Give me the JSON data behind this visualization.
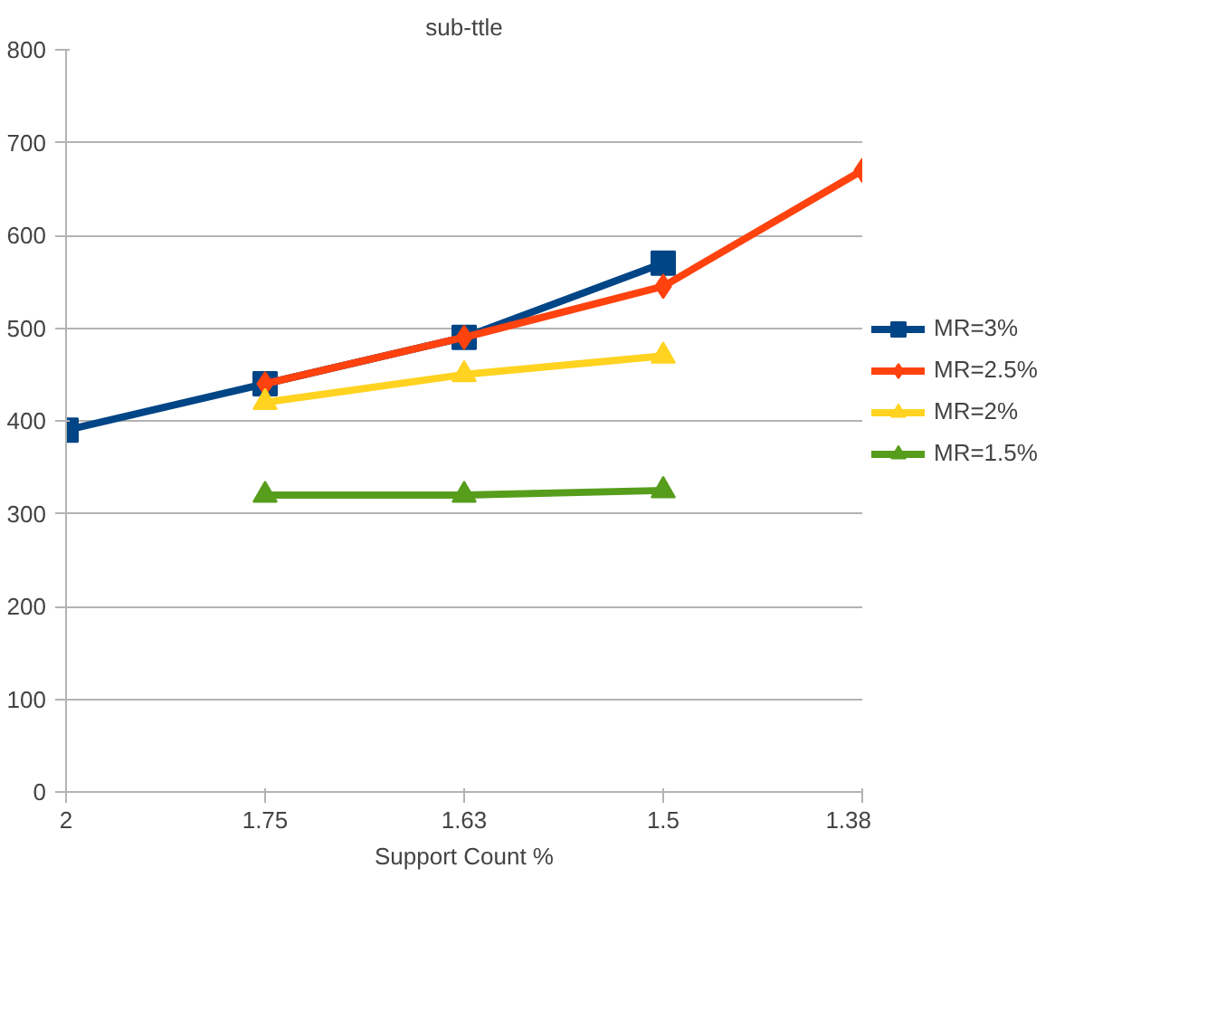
{
  "chart_data": {
    "type": "line",
    "title": "sub-ttle",
    "xlabel": "Support Count %",
    "categories": [
      "2",
      "1.75",
      "1.63",
      "1.5",
      "1.38"
    ],
    "ylim": [
      0,
      800
    ],
    "yticks": [
      0,
      100,
      200,
      300,
      400,
      500,
      600,
      700,
      800
    ],
    "grid": "y",
    "legend": "right",
    "series": [
      {
        "name": "MR=3%",
        "color": "#004586",
        "marker": "square",
        "values": [
          390,
          440,
          490,
          570,
          null
        ]
      },
      {
        "name": "MR=2.5%",
        "color": "#ff420e",
        "marker": "diamond",
        "values": [
          null,
          440,
          490,
          545,
          670
        ]
      },
      {
        "name": "MR=2%",
        "color": "#ffd320",
        "marker": "triangle",
        "values": [
          null,
          420,
          450,
          470,
          null
        ]
      },
      {
        "name": "MR=1.5%",
        "color": "#579d1c",
        "marker": "triangle",
        "values": [
          null,
          320,
          320,
          325,
          null
        ]
      }
    ]
  }
}
